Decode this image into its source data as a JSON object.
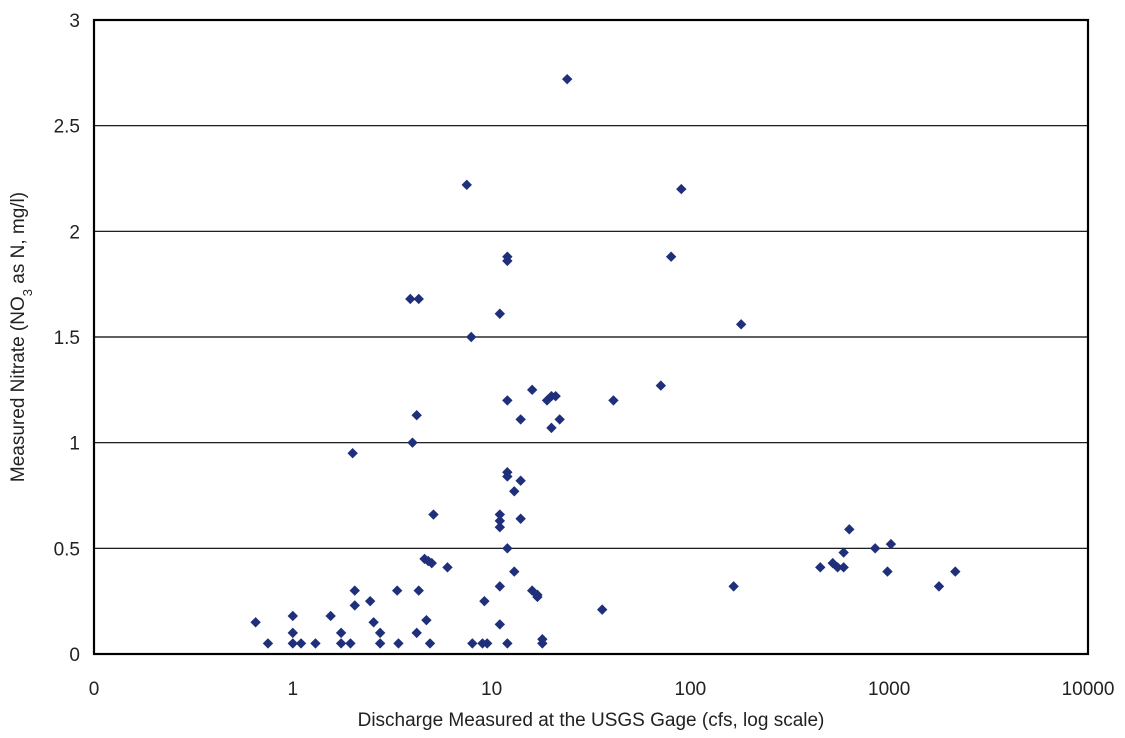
{
  "chart_data": {
    "type": "scatter",
    "title": "",
    "xlabel": "Discharge Measured at the USGS Gage (cfs, log scale)",
    "ylabel_parts": {
      "pre": "Measured Nitrate (NO",
      "sub": "3",
      "post": " as N, mg/l)"
    },
    "x_scale": "log",
    "xlim": [
      0.1,
      10000
    ],
    "ylim": [
      0,
      3
    ],
    "x_tick_labels": [
      "0",
      "1",
      "10",
      "100",
      "1000",
      "10000"
    ],
    "y_tick_labels": [
      "0",
      "0.5",
      "1",
      "1.5",
      "2",
      "2.5",
      "3"
    ],
    "y_gridlines": [
      0.5,
      1,
      1.5,
      2,
      2.5
    ],
    "grid": "horizontal",
    "legend": "none",
    "marker": "diamond",
    "color": "#1f2f7a",
    "points": [
      [
        0.65,
        0.15
      ],
      [
        0.75,
        0.05
      ],
      [
        1.0,
        0.18
      ],
      [
        1.0,
        0.1
      ],
      [
        1.0,
        0.05
      ],
      [
        1.1,
        0.05
      ],
      [
        1.3,
        0.05
      ],
      [
        1.55,
        0.18
      ],
      [
        1.75,
        0.1
      ],
      [
        1.75,
        0.05
      ],
      [
        1.95,
        0.05
      ],
      [
        2.0,
        0.95
      ],
      [
        2.05,
        0.3
      ],
      [
        2.05,
        0.23
      ],
      [
        2.45,
        0.25
      ],
      [
        2.55,
        0.15
      ],
      [
        2.75,
        0.1
      ],
      [
        2.75,
        0.05
      ],
      [
        3.35,
        0.3
      ],
      [
        3.4,
        0.05
      ],
      [
        3.9,
        1.68
      ],
      [
        4.0,
        1.0
      ],
      [
        4.2,
        1.13
      ],
      [
        4.3,
        0.3
      ],
      [
        4.3,
        1.68
      ],
      [
        4.2,
        0.1
      ],
      [
        4.6,
        0.45
      ],
      [
        4.7,
        0.16
      ],
      [
        4.8,
        0.44
      ],
      [
        4.9,
        0.05
      ],
      [
        5.0,
        0.43
      ],
      [
        5.1,
        0.66
      ],
      [
        6.0,
        0.41
      ],
      [
        7.5,
        2.22
      ],
      [
        7.9,
        1.5
      ],
      [
        8.0,
        0.05
      ],
      [
        9.0,
        0.05
      ],
      [
        9.2,
        0.25
      ],
      [
        9.5,
        0.05
      ],
      [
        11.0,
        1.61
      ],
      [
        11.0,
        0.66
      ],
      [
        11.0,
        0.63
      ],
      [
        11.0,
        0.6
      ],
      [
        11.0,
        0.32
      ],
      [
        11.0,
        0.14
      ],
      [
        12.0,
        1.88
      ],
      [
        12.0,
        1.86
      ],
      [
        12.0,
        1.2
      ],
      [
        12.0,
        0.86
      ],
      [
        12.0,
        0.84
      ],
      [
        12.0,
        0.5
      ],
      [
        12.0,
        0.05
      ],
      [
        13.0,
        0.77
      ],
      [
        13.0,
        0.39
      ],
      [
        14.0,
        1.11
      ],
      [
        14.0,
        0.82
      ],
      [
        14.0,
        0.64
      ],
      [
        16.0,
        1.25
      ],
      [
        16.0,
        0.3
      ],
      [
        17.0,
        0.28
      ],
      [
        17.0,
        0.27
      ],
      [
        18.0,
        0.07
      ],
      [
        18.0,
        0.05
      ],
      [
        19.0,
        1.2
      ],
      [
        20.0,
        1.22
      ],
      [
        20.0,
        1.07
      ],
      [
        21.0,
        1.22
      ],
      [
        22.0,
        1.11
      ],
      [
        24.0,
        2.72
      ],
      [
        36.0,
        0.21
      ],
      [
        41.0,
        1.2
      ],
      [
        71.0,
        1.27
      ],
      [
        80.0,
        1.88
      ],
      [
        90.0,
        2.2
      ],
      [
        165.0,
        0.32
      ],
      [
        180.0,
        1.56
      ],
      [
        450.0,
        0.41
      ],
      [
        520.0,
        0.43
      ],
      [
        550.0,
        0.41
      ],
      [
        590.0,
        0.48
      ],
      [
        590.0,
        0.41
      ],
      [
        630.0,
        0.59
      ],
      [
        850.0,
        0.5
      ],
      [
        980.0,
        0.39
      ],
      [
        1020.0,
        0.52
      ],
      [
        1780.0,
        0.32
      ],
      [
        2150.0,
        0.39
      ]
    ]
  }
}
